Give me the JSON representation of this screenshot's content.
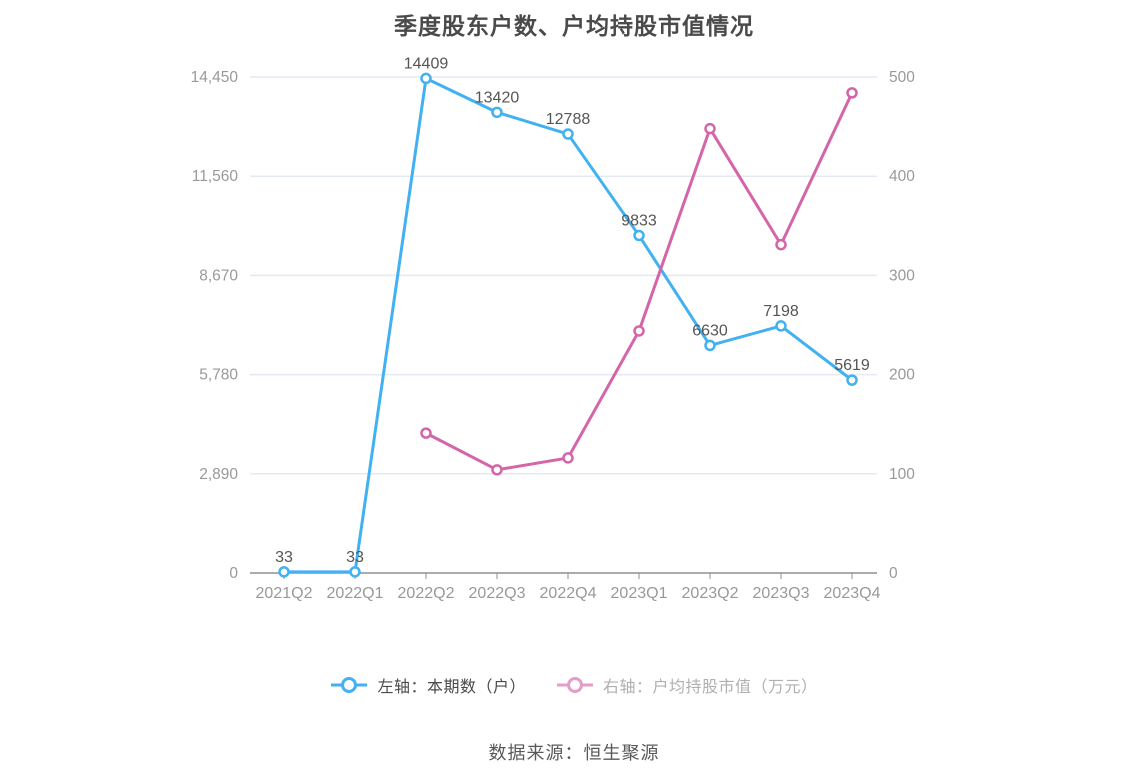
{
  "title": "季度股东户数、户均持股市值情况",
  "source": "数据来源：恒生聚源",
  "legend": [
    {
      "label": "左轴：本期数（户）",
      "marker_color": "#41b1f1",
      "text_color": "#4a4a4a"
    },
    {
      "label": "右轴：户均持股市值（万元）",
      "marker_color": "#e49cc8",
      "text_color": "#b0b0b0"
    }
  ],
  "chart_data": {
    "type": "line",
    "categories": [
      "2021Q2",
      "2022Q1",
      "2022Q2",
      "2022Q3",
      "2022Q4",
      "2023Q1",
      "2023Q2",
      "2023Q3",
      "2023Q4"
    ],
    "series": [
      {
        "name": "左轴：本期数（户）",
        "yaxis": "left",
        "color": "#41b1f1",
        "show_labels": true,
        "values": [
          33,
          33,
          14409,
          13420,
          12788,
          9833,
          6630,
          7198,
          5619
        ]
      },
      {
        "name": "右轴：户均持股市值（万元）",
        "yaxis": "right",
        "color": "#d465a9",
        "show_labels": false,
        "values": [
          null,
          null,
          141,
          104,
          116,
          244,
          448,
          331,
          484
        ]
      }
    ],
    "left_axis": {
      "ticks": [
        0,
        2890,
        5780,
        8670,
        11560,
        14450
      ],
      "tick_labels": [
        "0",
        "2,890",
        "5,780",
        "8,670",
        "11,560",
        "14,450"
      ],
      "max": 14450
    },
    "right_axis": {
      "ticks": [
        0,
        100,
        200,
        300,
        400,
        500
      ],
      "tick_labels": [
        "0",
        "100",
        "200",
        "300",
        "400",
        "500"
      ],
      "max": 500
    },
    "grid": true,
    "legend_position": "bottom"
  },
  "colors": {
    "grid_line": "#e4e9f2",
    "axis_line": "#8f8f8f",
    "tick_label": "#999999",
    "data_label": "#555555",
    "title": "#4a4a4a",
    "source": "#595959",
    "background": "#ffffff"
  }
}
